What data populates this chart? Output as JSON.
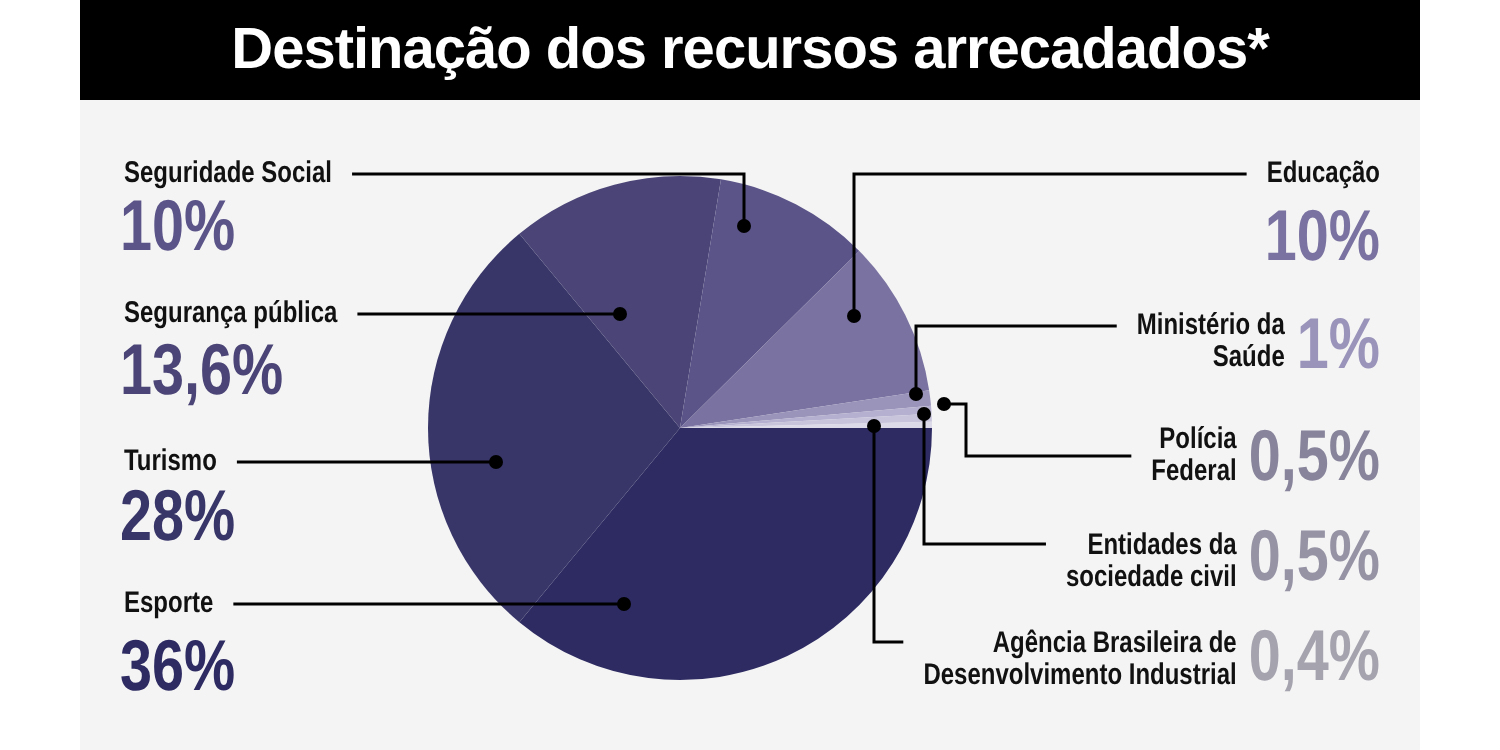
{
  "chart_data": {
    "type": "pie",
    "title": "Destinação dos recursos arrecadados*",
    "categories": [
      "Esporte",
      "Turismo",
      "Segurança pública",
      "Seguridade Social",
      "Educação",
      "Ministério da Saúde",
      "Polícia Federal",
      "Entidades da sociedade civil",
      "Agência Brasileira de Desenvolvimento Industrial"
    ],
    "values": [
      36,
      28,
      13.6,
      10,
      10,
      1,
      0.5,
      0.5,
      0.4
    ],
    "colors": [
      "#2d2b62",
      "#383569",
      "#4a4576",
      "#5b5489",
      "#7a72a0",
      "#9a94bb",
      "#b5b0cf",
      "#c8c4dc",
      "#dcd9e8"
    ],
    "value_labels": [
      "36%",
      "28%",
      "13,6%",
      "10%",
      "10%",
      "1%",
      "0,5%",
      "0,5%",
      "0,4%"
    ]
  }
}
